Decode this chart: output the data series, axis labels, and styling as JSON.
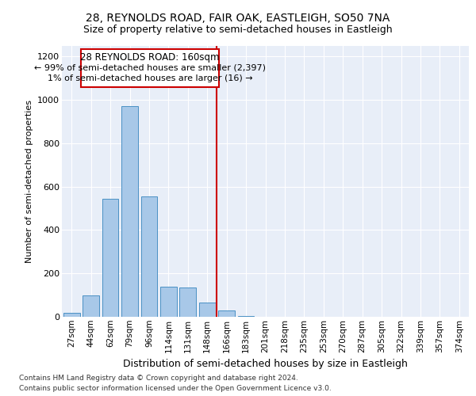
{
  "title1": "28, REYNOLDS ROAD, FAIR OAK, EASTLEIGH, SO50 7NA",
  "title2": "Size of property relative to semi-detached houses in Eastleigh",
  "xlabel": "Distribution of semi-detached houses by size in Eastleigh",
  "ylabel": "Number of semi-detached properties",
  "categories": [
    "27sqm",
    "44sqm",
    "62sqm",
    "79sqm",
    "96sqm",
    "114sqm",
    "131sqm",
    "148sqm",
    "166sqm",
    "183sqm",
    "201sqm",
    "218sqm",
    "235sqm",
    "253sqm",
    "270sqm",
    "287sqm",
    "305sqm",
    "322sqm",
    "339sqm",
    "357sqm",
    "374sqm"
  ],
  "values": [
    20,
    100,
    545,
    970,
    555,
    140,
    135,
    65,
    28,
    5,
    0,
    0,
    0,
    0,
    0,
    0,
    0,
    0,
    0,
    0,
    0
  ],
  "bar_color": "#a8c8e8",
  "bar_edge_color": "#4a90c4",
  "marker_color": "#cc0000",
  "ylim": [
    0,
    1250
  ],
  "yticks": [
    0,
    200,
    400,
    600,
    800,
    1000,
    1200
  ],
  "bg_color": "#e8eef8",
  "marker_label": "28 REYNOLDS ROAD: 160sqm",
  "annotation_line1": "← 99% of semi-detached houses are smaller (2,397)",
  "annotation_line2": "1% of semi-detached houses are larger (16) →",
  "footer1": "Contains HM Land Registry data © Crown copyright and database right 2024.",
  "footer2": "Contains public sector information licensed under the Open Government Licence v3.0."
}
